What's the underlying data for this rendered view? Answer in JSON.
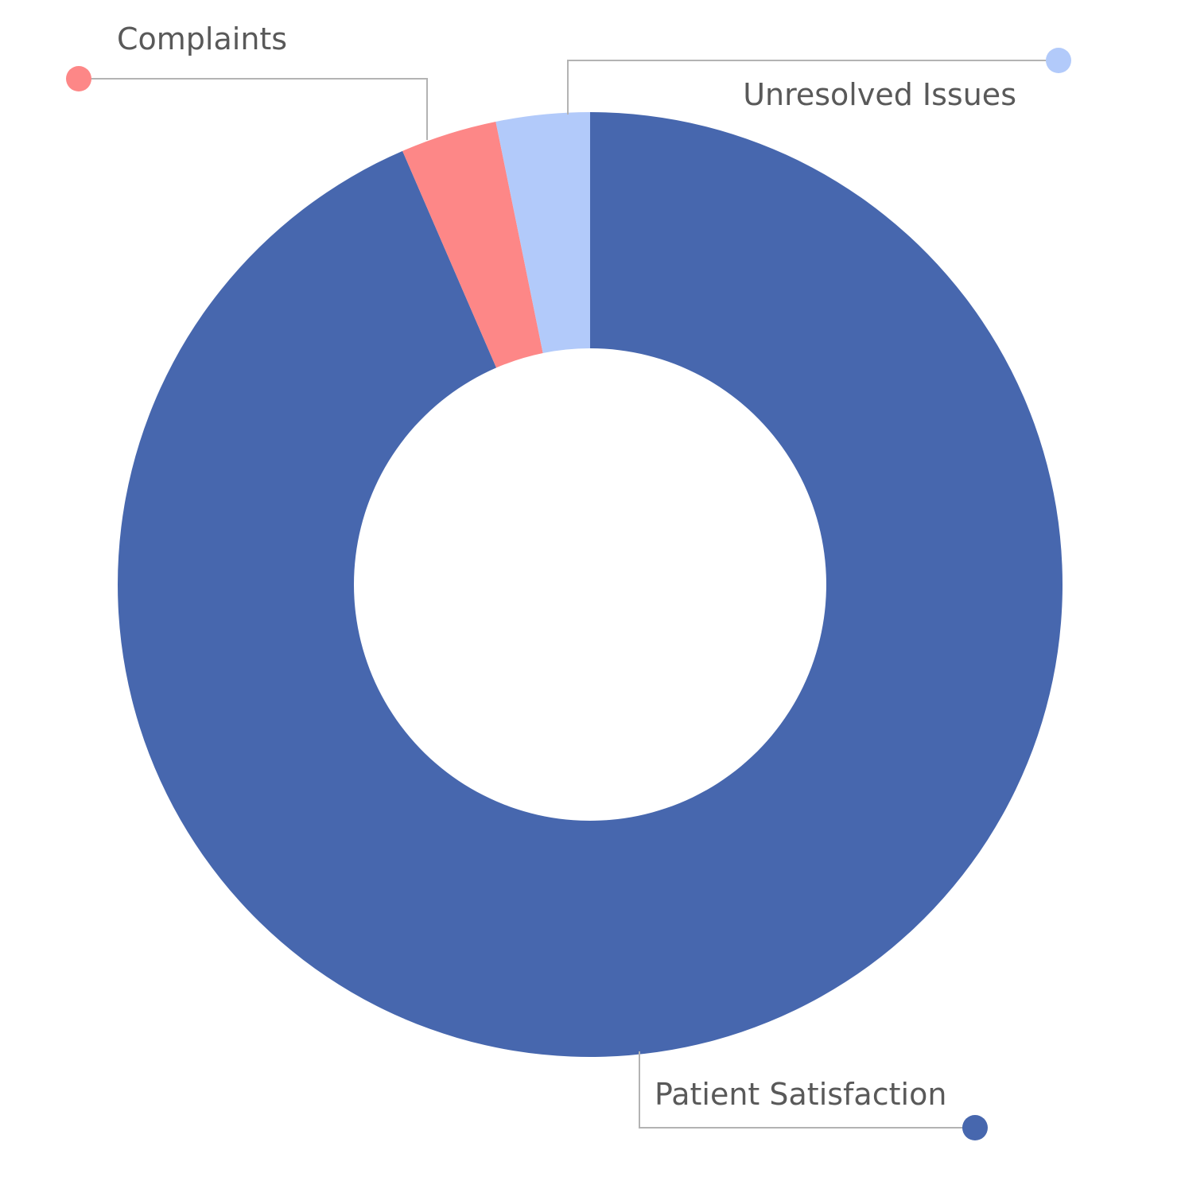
{
  "chart_data": {
    "type": "pie",
    "variant": "donut",
    "title": "",
    "series": [
      {
        "name": "Patient Satisfaction",
        "value": 93.5,
        "color": "#4767ae"
      },
      {
        "name": "Complaints",
        "value": 3.3,
        "color": "#fd8787"
      },
      {
        "name": "Unresolved Issues",
        "value": 3.2,
        "color": "#b2cafa"
      }
    ],
    "legend": "callout-labels",
    "start_angle_deg": 0,
    "direction": "clockwise"
  }
}
